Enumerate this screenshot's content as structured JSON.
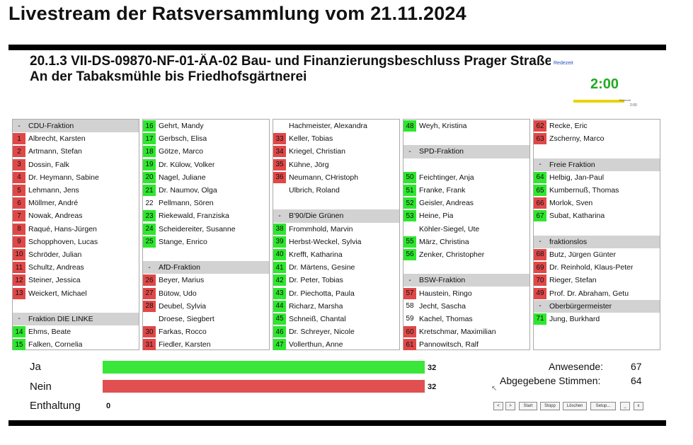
{
  "page": {
    "title": "Livestream der Ratsversammlung vom 21.11.2024"
  },
  "vote": {
    "title_line1": "20.1.3 VII-DS-09870-NF-01-ÄA-02 Bau- und Finanzierungsbeschluss Prager Straße",
    "title_line2": "An der Tabaksmühle bis Friedhofsgärtnerei",
    "redezeit_label": "Redezeit",
    "timer": "2:00",
    "timer_small": "2:00",
    "timer_bar_label": "Redezeit"
  },
  "colors": {
    "green": "#2ee62e",
    "red": "#e04848",
    "header": "#d2d2d2"
  },
  "columns": [
    [
      {
        "type": "header",
        "num": "-",
        "name": "CDU-Fraktion"
      },
      {
        "num": "1",
        "name": "Albrecht, Karsten",
        "vote": "red"
      },
      {
        "num": "2",
        "name": "Artmann, Stefan",
        "vote": "red"
      },
      {
        "num": "3",
        "name": "Dossin, Falk",
        "vote": "red"
      },
      {
        "num": "4",
        "name": "Dr. Heymann, Sabine",
        "vote": "red"
      },
      {
        "num": "5",
        "name": "Lehmann, Jens",
        "vote": "red"
      },
      {
        "num": "6",
        "name": "Möllmer, André",
        "vote": "red"
      },
      {
        "num": "7",
        "name": "Nowak, Andreas",
        "vote": "red"
      },
      {
        "num": "8",
        "name": "Raqué, Hans-Jürgen",
        "vote": "red"
      },
      {
        "num": "9",
        "name": "Schopphoven, Lucas",
        "vote": "red"
      },
      {
        "num": "10",
        "name": "Schröder, Julian",
        "vote": "red"
      },
      {
        "num": "11",
        "name": "Schultz, Andreas",
        "vote": "red"
      },
      {
        "num": "12",
        "name": "Steiner, Jessica",
        "vote": "red"
      },
      {
        "num": "13",
        "name": "Weickert, Michael",
        "vote": "red"
      },
      {
        "type": "empty"
      },
      {
        "type": "header",
        "num": "-",
        "name": "Fraktion DIE LINKE"
      },
      {
        "num": "14",
        "name": "Ehms, Beate",
        "vote": "green"
      },
      {
        "num": "15",
        "name": "Falken, Cornelia",
        "vote": "green"
      }
    ],
    [
      {
        "num": "16",
        "name": "Gehrt, Mandy",
        "vote": "green"
      },
      {
        "num": "17",
        "name": "Gerbsch, Elisa",
        "vote": "green"
      },
      {
        "num": "18",
        "name": "Götze, Marco",
        "vote": "green"
      },
      {
        "num": "19",
        "name": "Dr. Külow, Volker",
        "vote": "green"
      },
      {
        "num": "20",
        "name": "Nagel, Juliane",
        "vote": "green"
      },
      {
        "num": "21",
        "name": "Dr. Naumov, Olga",
        "vote": "green"
      },
      {
        "num": "22",
        "name": "Pellmann, Sören",
        "vote": "none"
      },
      {
        "num": "23",
        "name": "Riekewald, Franziska",
        "vote": "green"
      },
      {
        "num": "24",
        "name": "Scheidereiter, Susanne",
        "vote": "green"
      },
      {
        "num": "25",
        "name": "Stange, Enrico",
        "vote": "green"
      },
      {
        "type": "empty"
      },
      {
        "type": "header",
        "num": "-",
        "name": "AfD-Fraktion"
      },
      {
        "num": "26",
        "name": "Beyer, Marius",
        "vote": "red"
      },
      {
        "num": "27",
        "name": "Bütow, Udo",
        "vote": "red"
      },
      {
        "num": "28",
        "name": "Deubel, Sylvia",
        "vote": "red"
      },
      {
        "num": "",
        "name": "Droese, Siegbert",
        "vote": "none"
      },
      {
        "num": "30",
        "name": "Farkas, Rocco",
        "vote": "red"
      },
      {
        "num": "31",
        "name": "Fiedler, Karsten",
        "vote": "red"
      }
    ],
    [
      {
        "num": "",
        "name": "Hachmeister, Alexandra",
        "vote": "none"
      },
      {
        "num": "33",
        "name": "Keller, Tobias",
        "vote": "red"
      },
      {
        "num": "34",
        "name": "Kriegel, Christian",
        "vote": "red"
      },
      {
        "num": "35",
        "name": "Kühne, Jörg",
        "vote": "red"
      },
      {
        "num": "36",
        "name": "Neumann, CHristoph",
        "vote": "red"
      },
      {
        "num": "",
        "name": "Ulbrich, Roland",
        "vote": "none"
      },
      {
        "type": "empty"
      },
      {
        "type": "header",
        "num": "-",
        "name": "B'90/Die Grünen"
      },
      {
        "num": "38",
        "name": "Frommhold, Marvin",
        "vote": "green"
      },
      {
        "num": "39",
        "name": "Herbst-Weckel, Sylvia",
        "vote": "green"
      },
      {
        "num": "40",
        "name": "Krefft, Katharina",
        "vote": "green"
      },
      {
        "num": "41",
        "name": "Dr. Märtens, Gesine",
        "vote": "green"
      },
      {
        "num": "42",
        "name": "Dr. Peter, Tobias",
        "vote": "green"
      },
      {
        "num": "43",
        "name": "Dr. Piechotta, Paula",
        "vote": "green"
      },
      {
        "num": "44",
        "name": "Richarz, Marsha",
        "vote": "green"
      },
      {
        "num": "45",
        "name": "Schneiß, Chantal",
        "vote": "green"
      },
      {
        "num": "46",
        "name": "Dr. Schreyer, Nicole",
        "vote": "green"
      },
      {
        "num": "47",
        "name": "Vollerthun, Anne",
        "vote": "green"
      }
    ],
    [
      {
        "num": "48",
        "name": "Weyh, Kristina",
        "vote": "green"
      },
      {
        "type": "empty"
      },
      {
        "type": "header",
        "num": "-",
        "name": "SPD-Fraktion"
      },
      {
        "type": "empty"
      },
      {
        "num": "50",
        "name": "Feichtinger, Anja",
        "vote": "green"
      },
      {
        "num": "51",
        "name": "Franke, Frank",
        "vote": "green"
      },
      {
        "num": "52",
        "name": "Geisler, Andreas",
        "vote": "green"
      },
      {
        "num": "53",
        "name": "Heine, Pia",
        "vote": "green"
      },
      {
        "num": "",
        "name": "Köhler-Siegel, Ute",
        "vote": "none"
      },
      {
        "num": "55",
        "name": "März, Christina",
        "vote": "green"
      },
      {
        "num": "56",
        "name": "Zenker, Christopher",
        "vote": "green"
      },
      {
        "type": "empty"
      },
      {
        "type": "header",
        "num": "-",
        "name": "BSW-Fraktion"
      },
      {
        "num": "57",
        "name": "Haustein, Ringo",
        "vote": "red"
      },
      {
        "num": "58",
        "name": "Jecht, Sascha",
        "vote": "none"
      },
      {
        "num": "59",
        "name": "Kachel, Thomas",
        "vote": "none"
      },
      {
        "num": "60",
        "name": "Kretschmar, Maximilian",
        "vote": "red"
      },
      {
        "num": "61",
        "name": "Pannowitsch, Ralf",
        "vote": "red"
      }
    ],
    [
      {
        "num": "62",
        "name": "Recke, Eric",
        "vote": "red"
      },
      {
        "num": "63",
        "name": "Zscherny, Marco",
        "vote": "red"
      },
      {
        "type": "empty"
      },
      {
        "type": "header",
        "num": "-",
        "name": "Freie Fraktion"
      },
      {
        "num": "64",
        "name": "Helbig, Jan-Paul",
        "vote": "green"
      },
      {
        "num": "65",
        "name": "Kumbernuß, Thomas",
        "vote": "green"
      },
      {
        "num": "66",
        "name": "Morlok, Sven",
        "vote": "red"
      },
      {
        "num": "67",
        "name": "Subat, Katharina",
        "vote": "green"
      },
      {
        "type": "empty"
      },
      {
        "type": "header",
        "num": "-",
        "name": "fraktionslos"
      },
      {
        "num": "68",
        "name": "Butz, Jürgen Günter",
        "vote": "red"
      },
      {
        "num": "69",
        "name": "Dr. Reinhold, Klaus-Peter",
        "vote": "red"
      },
      {
        "num": "70",
        "name": "Rieger, Stefan",
        "vote": "red"
      },
      {
        "num": "49",
        "name": "Prof. Dr. Abraham, Getu",
        "vote": "red"
      },
      {
        "type": "header",
        "num": "-",
        "name": "Oberbürgermeister"
      },
      {
        "num": "71",
        "name": "Jung, Burkhard",
        "vote": "green"
      },
      {
        "type": "empty"
      },
      {
        "type": "empty"
      }
    ]
  ],
  "results": {
    "ja_label": "Ja",
    "ja_count": "32",
    "ja_value": 32,
    "nein_label": "Nein",
    "nein_count": "32",
    "nein_value": 32,
    "enthaltung_label": "Enthaltung",
    "enthaltung_count": "0",
    "enthaltung_value": 0
  },
  "stats": {
    "anwesende_label": "Anwesende:",
    "anwesende_value": "67",
    "abgegeben_label": "Abgegebene Stimmen:",
    "abgegeben_value": "64"
  },
  "controls": [
    "<",
    ">",
    "Start",
    "Stopp",
    "Löschen",
    "Setup...",
    "_",
    "x"
  ]
}
